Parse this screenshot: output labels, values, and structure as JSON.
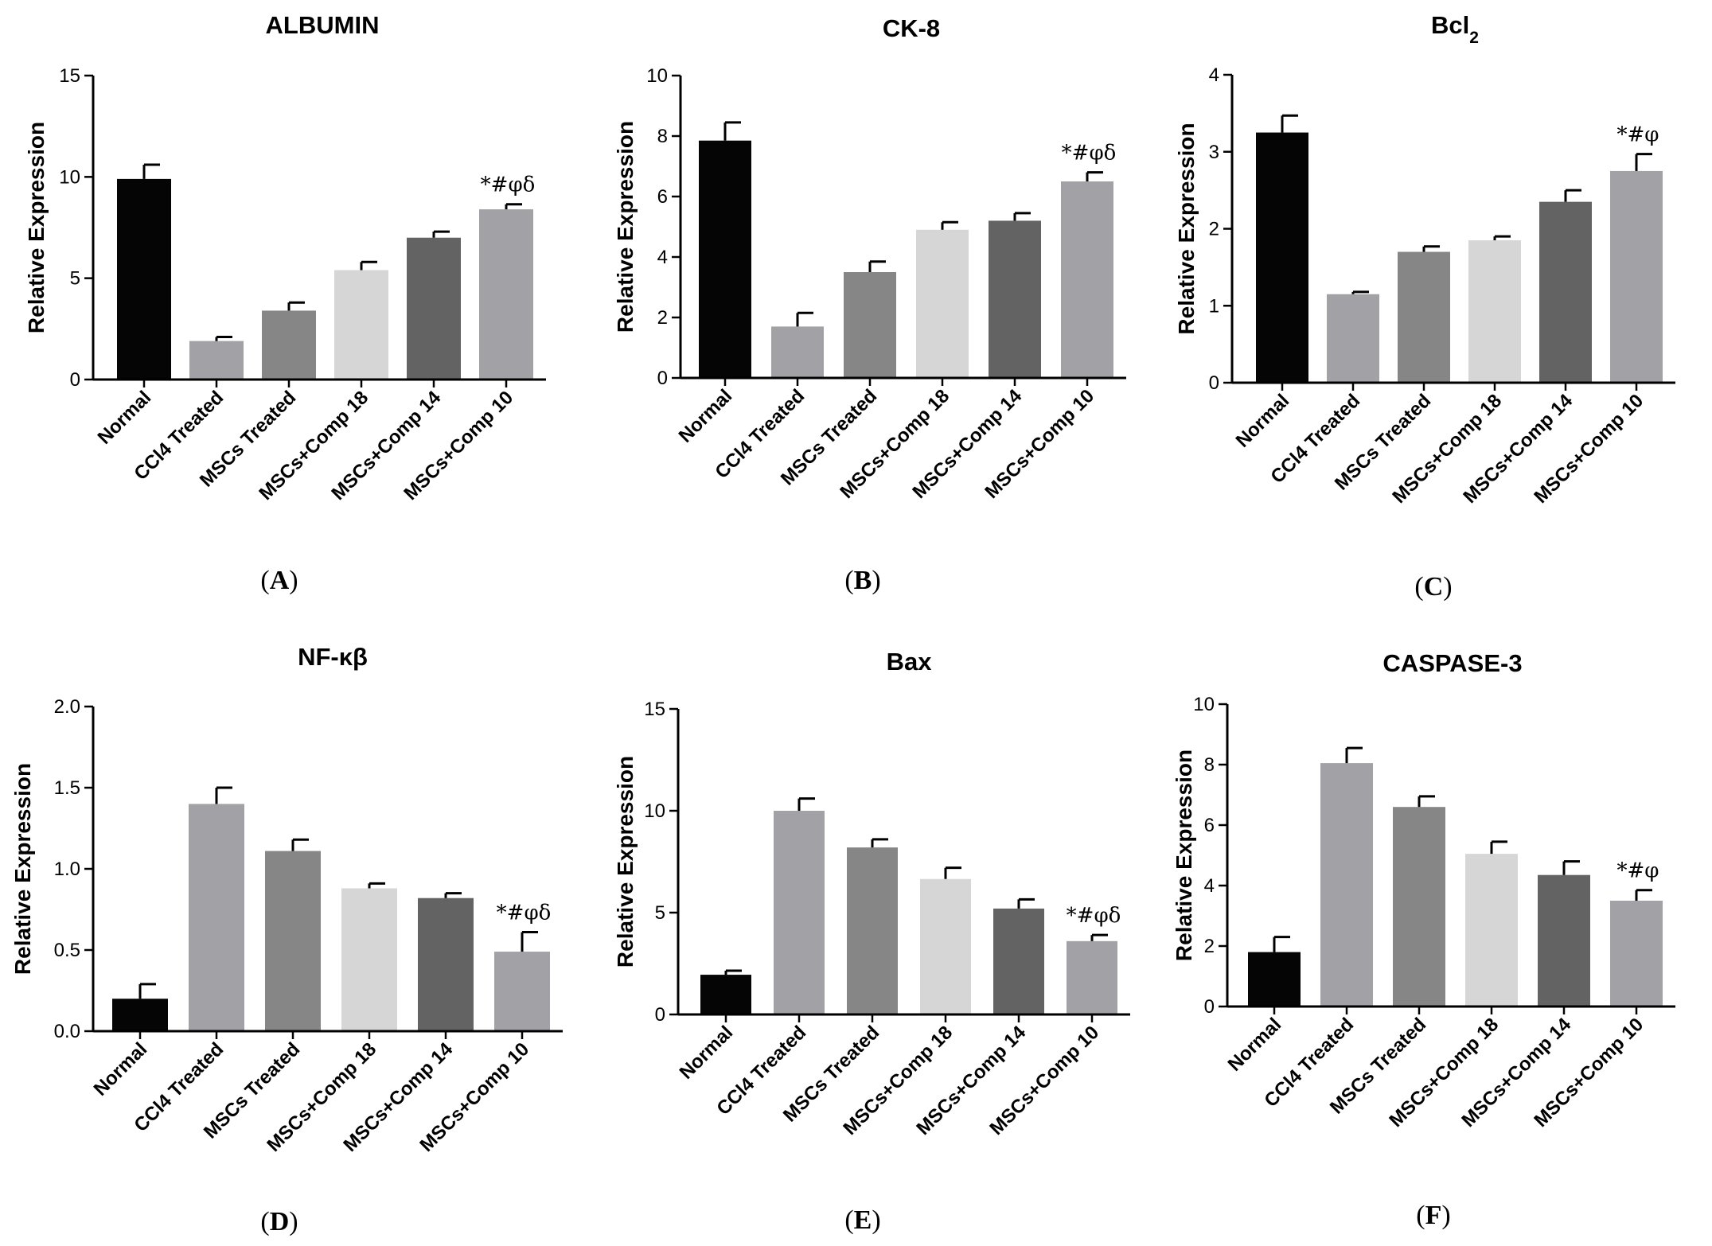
{
  "colors": {
    "Normal": "#050505",
    "CCl4 Treated": "#a2a2a6",
    "MSCs Treated": "#868686",
    "MSCs+Comp 18": "#d6d6d6",
    "MSCs+Comp 14": "#636363",
    "MSCs+Comp 10": "#a2a2a6",
    "axis": "#000000"
  },
  "chart_data": [
    {
      "panel": "A",
      "type": "bar",
      "title": "ALBUMIN",
      "ylabel": "Relative Expression",
      "xlabel": "",
      "ylim": [
        0,
        15
      ],
      "yticks": [
        "0",
        "5",
        "10",
        "15"
      ],
      "categories": [
        "Normal",
        "CCl4 Treated",
        "MSCs Treated",
        "MSCs+Comp 18",
        "MSCs+Comp 14",
        "MSCs+Comp 10"
      ],
      "values": [
        9.9,
        1.9,
        3.4,
        5.4,
        7.0,
        8.4
      ],
      "errors": [
        0.7,
        0.2,
        0.4,
        0.4,
        0.3,
        0.25
      ],
      "annotation": {
        "category": "MSCs+Comp 10",
        "text": "*#φδ"
      }
    },
    {
      "panel": "B",
      "type": "bar",
      "title": "CK-8",
      "ylabel": "Relative Expression",
      "xlabel": "",
      "ylim": [
        0,
        10
      ],
      "yticks": [
        "0",
        "2",
        "4",
        "6",
        "8",
        "10"
      ],
      "categories": [
        "Normal",
        "CCl4 Treated",
        "MSCs Treated",
        "MSCs+Comp 18",
        "MSCs+Comp 14",
        "MSCs+Comp 10"
      ],
      "values": [
        7.85,
        1.7,
        3.5,
        4.9,
        5.2,
        6.5
      ],
      "errors": [
        0.6,
        0.45,
        0.35,
        0.25,
        0.25,
        0.3
      ],
      "annotation": {
        "category": "MSCs+Comp 10",
        "text": "*#φδ"
      }
    },
    {
      "panel": "C",
      "type": "bar",
      "title": "Bcl",
      "title_subscript": "2",
      "ylabel": "Relative Expression",
      "xlabel": "",
      "ylim": [
        0,
        4
      ],
      "yticks": [
        "0",
        "1",
        "2",
        "3",
        "4"
      ],
      "categories": [
        "Normal",
        "CCl4 Treated",
        "MSCs Treated",
        "MSCs+Comp 18",
        "MSCs+Comp 14",
        "MSCs+Comp 10"
      ],
      "values": [
        3.25,
        1.15,
        1.7,
        1.85,
        2.35,
        2.75
      ],
      "errors": [
        0.22,
        0.03,
        0.07,
        0.05,
        0.15,
        0.22
      ],
      "annotation": {
        "category": "MSCs+Comp 10",
        "text": "*#φ"
      }
    },
    {
      "panel": "D",
      "type": "bar",
      "title": "NF-κβ",
      "ylabel": "Relative Expression",
      "xlabel": "",
      "ylim": [
        0,
        2.0
      ],
      "yticks": [
        "0.0",
        "0.5",
        "1.0",
        "1.5",
        "2.0"
      ],
      "categories": [
        "Normal",
        "CCl4 Treated",
        "MSCs Treated",
        "MSCs+Comp 18",
        "MSCs+Comp 14",
        "MSCs+Comp 10"
      ],
      "values": [
        0.2,
        1.4,
        1.11,
        0.88,
        0.82,
        0.49
      ],
      "errors": [
        0.09,
        0.1,
        0.07,
        0.03,
        0.03,
        0.12
      ],
      "annotation": {
        "category": "MSCs+Comp 10",
        "text": "*#φδ"
      }
    },
    {
      "panel": "E",
      "type": "bar",
      "title": "Bax",
      "ylabel": "Relative Expression",
      "xlabel": "",
      "ylim": [
        0,
        15
      ],
      "yticks": [
        "0",
        "5",
        "10",
        "15"
      ],
      "categories": [
        "Normal",
        "CCl4 Treated",
        "MSCs Treated",
        "MSCs+Comp 18",
        "MSCs+Comp 14",
        "MSCs+Comp 10"
      ],
      "values": [
        1.95,
        10.0,
        8.2,
        6.65,
        5.2,
        3.6
      ],
      "errors": [
        0.2,
        0.6,
        0.4,
        0.55,
        0.45,
        0.3
      ],
      "annotation": {
        "category": "MSCs+Comp 10",
        "text": "*#φδ"
      }
    },
    {
      "panel": "F",
      "type": "bar",
      "title": "CASPASE-3",
      "ylabel": "Relative Expression",
      "xlabel": "",
      "ylim": [
        0,
        10
      ],
      "yticks": [
        "0",
        "2",
        "4",
        "6",
        "8",
        "10"
      ],
      "categories": [
        "Normal",
        "CCl4 Treated",
        "MSCs Treated",
        "MSCs+Comp 18",
        "MSCs+Comp 14",
        "MSCs+Comp 10"
      ],
      "values": [
        1.8,
        8.05,
        6.6,
        5.05,
        4.35,
        3.5
      ],
      "errors": [
        0.5,
        0.5,
        0.35,
        0.4,
        0.45,
        0.35
      ],
      "annotation": {
        "category": "MSCs+Comp 10",
        "text": "*#φ"
      }
    }
  ]
}
